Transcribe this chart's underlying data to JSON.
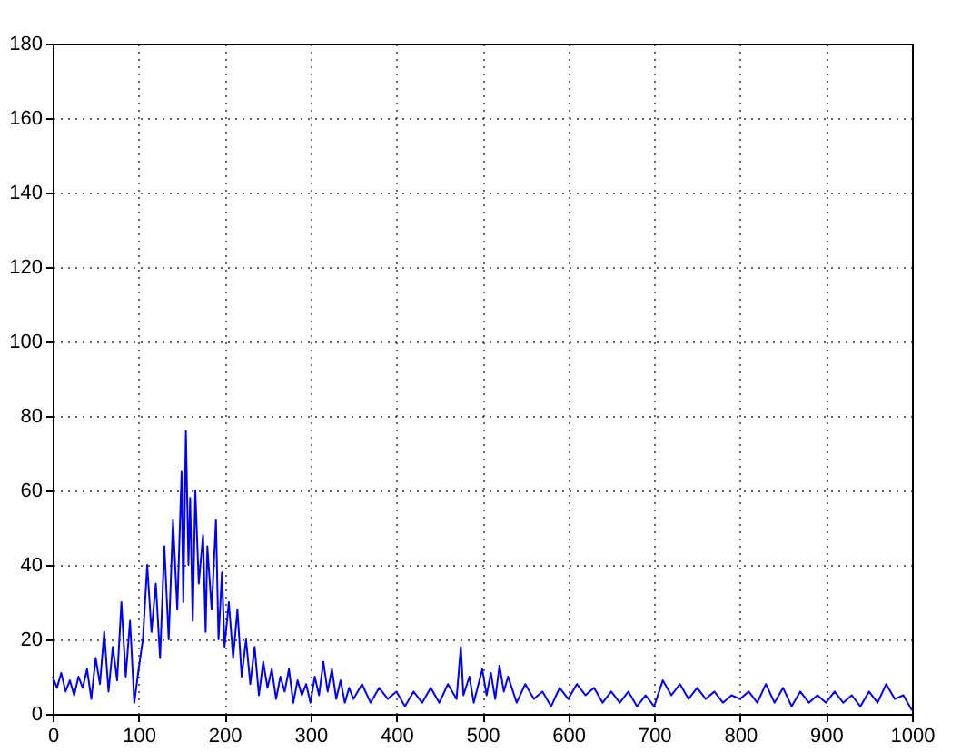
{
  "chart_data": {
    "type": "line",
    "x": [
      0,
      5,
      10,
      15,
      20,
      25,
      30,
      35,
      40,
      45,
      50,
      55,
      60,
      65,
      70,
      75,
      80,
      85,
      90,
      95,
      100,
      105,
      110,
      115,
      120,
      125,
      130,
      135,
      140,
      145,
      150,
      152,
      155,
      158,
      160,
      163,
      166,
      170,
      175,
      178,
      180,
      185,
      190,
      193,
      197,
      200,
      205,
      210,
      215,
      220,
      225,
      230,
      235,
      240,
      245,
      250,
      255,
      260,
      265,
      270,
      275,
      280,
      285,
      290,
      295,
      300,
      305,
      310,
      315,
      320,
      325,
      330,
      335,
      340,
      345,
      350,
      360,
      370,
      380,
      390,
      400,
      410,
      420,
      430,
      440,
      450,
      460,
      470,
      475,
      478,
      485,
      490,
      500,
      505,
      510,
      515,
      520,
      525,
      530,
      540,
      550,
      560,
      570,
      580,
      590,
      600,
      610,
      620,
      630,
      640,
      650,
      660,
      670,
      680,
      690,
      700,
      710,
      720,
      730,
      740,
      750,
      760,
      770,
      780,
      790,
      800,
      810,
      820,
      830,
      840,
      850,
      860,
      870,
      880,
      890,
      900,
      910,
      920,
      930,
      940,
      950,
      960,
      970,
      980,
      990,
      1000
    ],
    "series": [
      {
        "color": "#0000ff",
        "values": [
          10,
          7,
          11,
          6,
          9,
          5,
          10,
          7,
          12,
          4,
          15,
          8,
          22,
          6,
          18,
          9,
          30,
          10,
          25,
          3,
          12,
          20,
          40,
          22,
          35,
          15,
          45,
          20,
          52,
          28,
          65,
          30,
          76,
          40,
          58,
          25,
          60,
          35,
          48,
          22,
          45,
          28,
          52,
          20,
          38,
          18,
          30,
          15,
          28,
          10,
          20,
          8,
          18,
          5,
          14,
          7,
          12,
          4,
          10,
          6,
          12,
          3,
          9,
          5,
          8,
          3,
          10,
          5,
          14,
          6,
          12,
          4,
          9,
          3,
          7,
          4,
          8,
          3,
          7,
          4,
          6,
          2,
          6,
          3,
          7,
          3,
          8,
          4,
          18,
          5,
          10,
          3,
          12,
          5,
          11,
          4,
          13,
          6,
          10,
          3,
          8,
          4,
          6,
          2,
          7,
          4,
          8,
          5,
          7,
          3,
          6,
          3,
          6,
          2,
          5,
          2,
          9,
          5,
          8,
          4,
          7,
          4,
          6,
          3,
          5,
          4,
          6,
          3,
          8,
          3,
          7,
          2,
          6,
          3,
          5,
          3,
          6,
          3,
          5,
          2,
          6,
          3,
          8,
          4,
          5,
          1
        ]
      }
    ],
    "xlim": [
      0,
      1000
    ],
    "xticks": [
      0,
      100,
      200,
      300,
      400,
      500,
      600,
      700,
      800,
      900,
      1000
    ],
    "ylim": [
      0,
      180
    ],
    "yticks": [
      0,
      20,
      40,
      60,
      80,
      100,
      120,
      140,
      160,
      180
    ],
    "grid": true
  }
}
